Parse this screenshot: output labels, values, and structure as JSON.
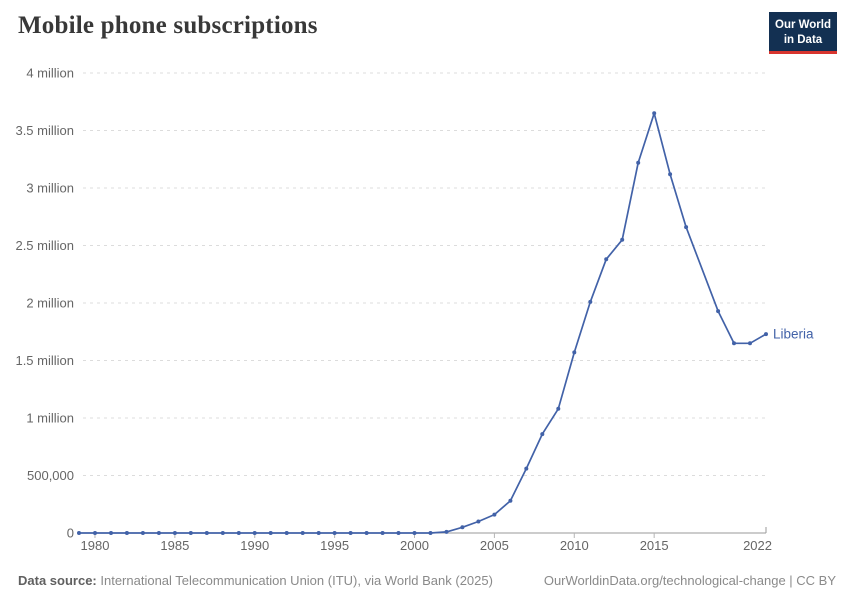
{
  "header": {
    "title": "Mobile phone subscriptions",
    "logo": {
      "line1": "Our World",
      "line2": "in Data"
    }
  },
  "footer": {
    "source_label": "Data source:",
    "source_text": " International Telecommunication Union (ITU), via World Bank (2025)",
    "link_text": "OurWorldinData.org/technological-change | CC BY"
  },
  "colors": {
    "line": "#4262a8",
    "logo_navy": "#133052",
    "logo_red": "#d8352e",
    "grid": "#dcdcdc",
    "axis": "#9a9a9a",
    "axis_text": "#666666"
  },
  "chart_data": {
    "type": "line",
    "title": "Mobile phone subscriptions",
    "xlabel": "",
    "ylabel": "",
    "x_range": [
      1979,
      2022
    ],
    "y_range": [
      0,
      4000000
    ],
    "grid": true,
    "legend_position": "end-of-line",
    "x_ticks": [
      1980,
      1985,
      1990,
      1995,
      2000,
      2005,
      2010,
      2015,
      2022
    ],
    "y_ticks": [
      {
        "value": 0,
        "label": "0"
      },
      {
        "value": 500000,
        "label": "500,000"
      },
      {
        "value": 1000000,
        "label": "1 million"
      },
      {
        "value": 1500000,
        "label": "1.5 million"
      },
      {
        "value": 2000000,
        "label": "2 million"
      },
      {
        "value": 2500000,
        "label": "2.5 million"
      },
      {
        "value": 3000000,
        "label": "3 million"
      },
      {
        "value": 3500000,
        "label": "3.5 million"
      },
      {
        "value": 4000000,
        "label": "4 million"
      }
    ],
    "missing_years": [
      2018
    ],
    "series": [
      {
        "name": "Liberia",
        "color": "#4262a8",
        "points": [
          [
            1979,
            0
          ],
          [
            1980,
            0
          ],
          [
            1981,
            0
          ],
          [
            1982,
            0
          ],
          [
            1983,
            0
          ],
          [
            1984,
            0
          ],
          [
            1985,
            0
          ],
          [
            1986,
            0
          ],
          [
            1987,
            0
          ],
          [
            1988,
            0
          ],
          [
            1989,
            0
          ],
          [
            1990,
            0
          ],
          [
            1991,
            0
          ],
          [
            1992,
            0
          ],
          [
            1993,
            0
          ],
          [
            1994,
            0
          ],
          [
            1995,
            0
          ],
          [
            1996,
            0
          ],
          [
            1997,
            0
          ],
          [
            1998,
            0
          ],
          [
            1999,
            0
          ],
          [
            2000,
            0
          ],
          [
            2001,
            0
          ],
          [
            2002,
            10000
          ],
          [
            2003,
            50000
          ],
          [
            2004,
            100000
          ],
          [
            2005,
            160000
          ],
          [
            2006,
            280000
          ],
          [
            2007,
            560000
          ],
          [
            2008,
            860000
          ],
          [
            2009,
            1080000
          ],
          [
            2010,
            1570000
          ],
          [
            2011,
            2010000
          ],
          [
            2012,
            2380000
          ],
          [
            2013,
            2550000
          ],
          [
            2014,
            3220000
          ],
          [
            2015,
            3650000
          ],
          [
            2016,
            3120000
          ],
          [
            2017,
            2660000
          ],
          [
            2019,
            1930000
          ],
          [
            2020,
            1650000
          ],
          [
            2021,
            1650000
          ],
          [
            2022,
            1730000
          ]
        ]
      }
    ]
  }
}
